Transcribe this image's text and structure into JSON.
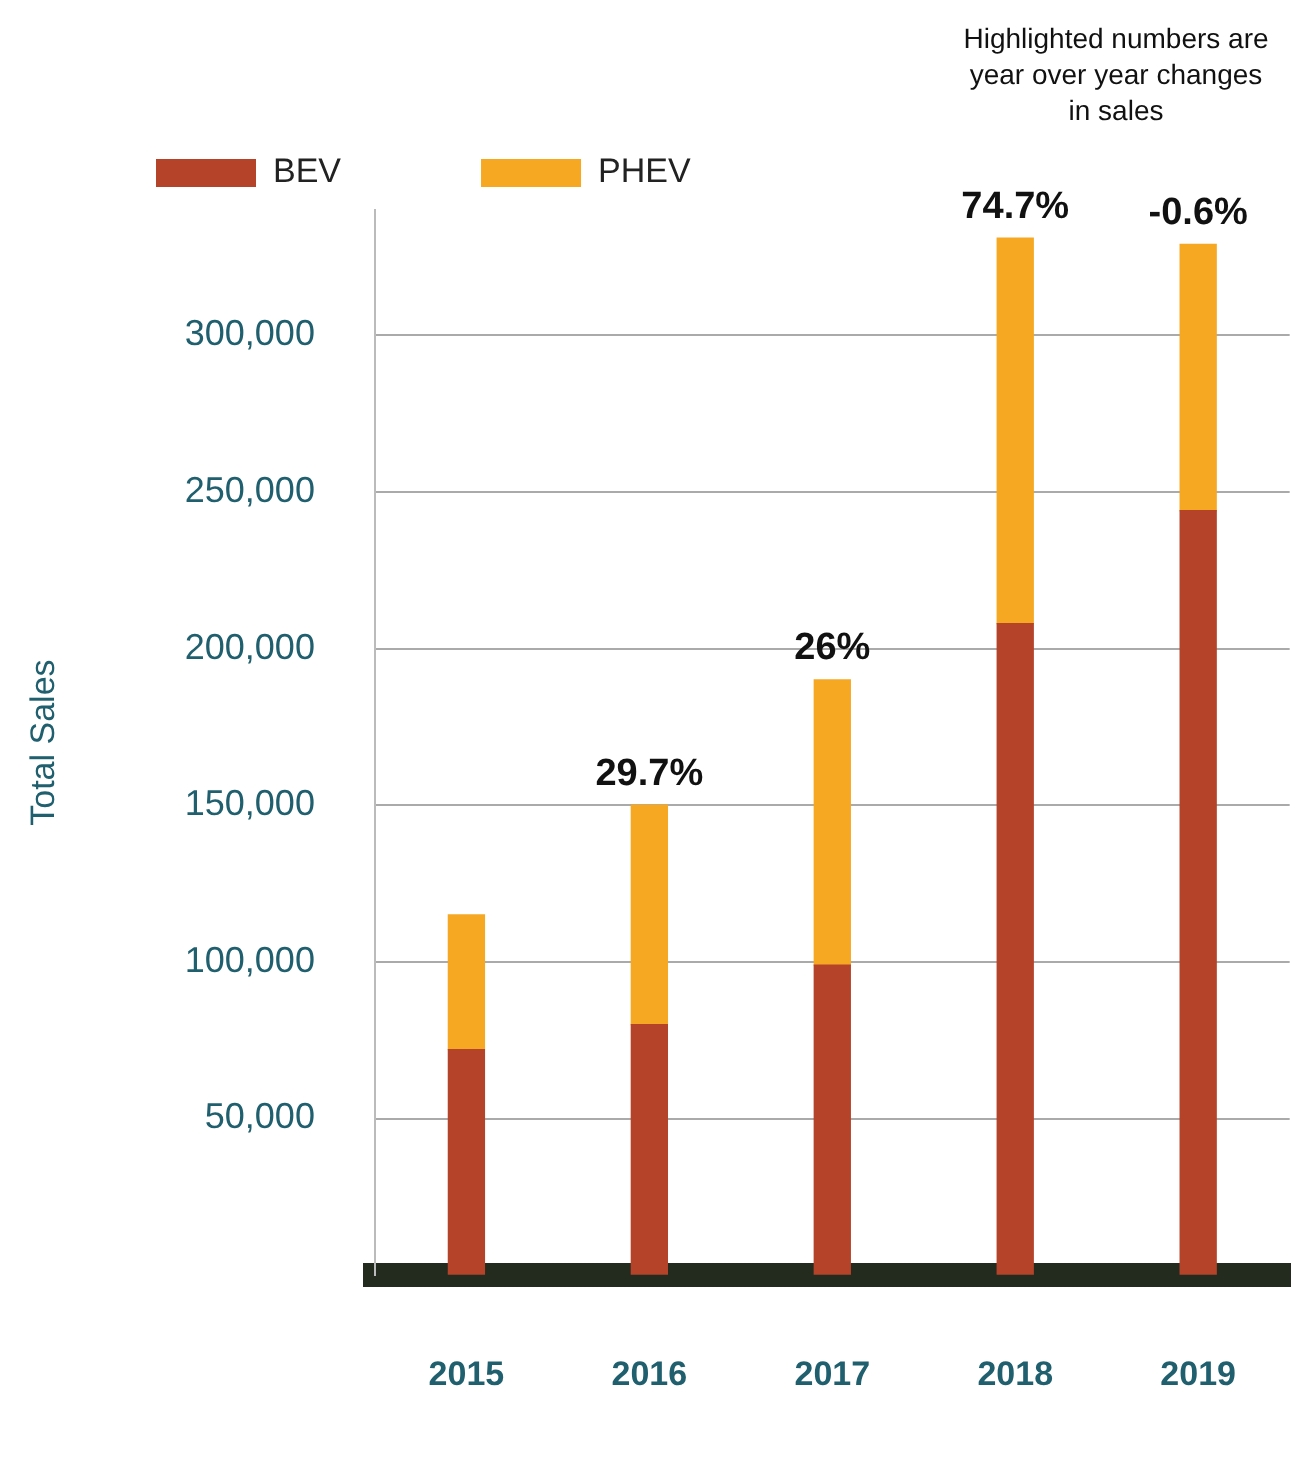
{
  "chart_data": {
    "type": "bar",
    "stacked": true,
    "categories": [
      "2015",
      "2016",
      "2017",
      "2018",
      "2019"
    ],
    "series": [
      {
        "name": "BEV",
        "color": "#b5432a",
        "values": [
          72000,
          80000,
          99000,
          208000,
          244000
        ]
      },
      {
        "name": "PHEV",
        "color": "#f6a823",
        "values": [
          43000,
          70000,
          91000,
          123000,
          85000
        ]
      }
    ],
    "ylabel": "Total Sales",
    "ylim": [
      0,
      340000
    ],
    "yticks": [
      {
        "value": 0,
        "label": null
      },
      {
        "value": 50000,
        "label": "50,000"
      },
      {
        "value": 100000,
        "label": "100,000"
      },
      {
        "value": 150000,
        "label": "150,000"
      },
      {
        "value": 200000,
        "label": "200,000"
      },
      {
        "value": 250000,
        "label": "250,000"
      },
      {
        "value": 300000,
        "label": "300,000"
      }
    ],
    "grid": "y",
    "legend": "top left",
    "annotations": [
      "Highlighted numbers are year over year changes in sales",
      {
        "text": "29.7%",
        "x": "2016",
        "y": 150000
      },
      {
        "text": "26%",
        "x": "2017",
        "y": 190000
      },
      {
        "text": "74.7%",
        "x": "2018",
        "y": 331000
      },
      {
        "text": "-0.6%",
        "x": "2019",
        "y": 329000
      }
    ]
  }
}
